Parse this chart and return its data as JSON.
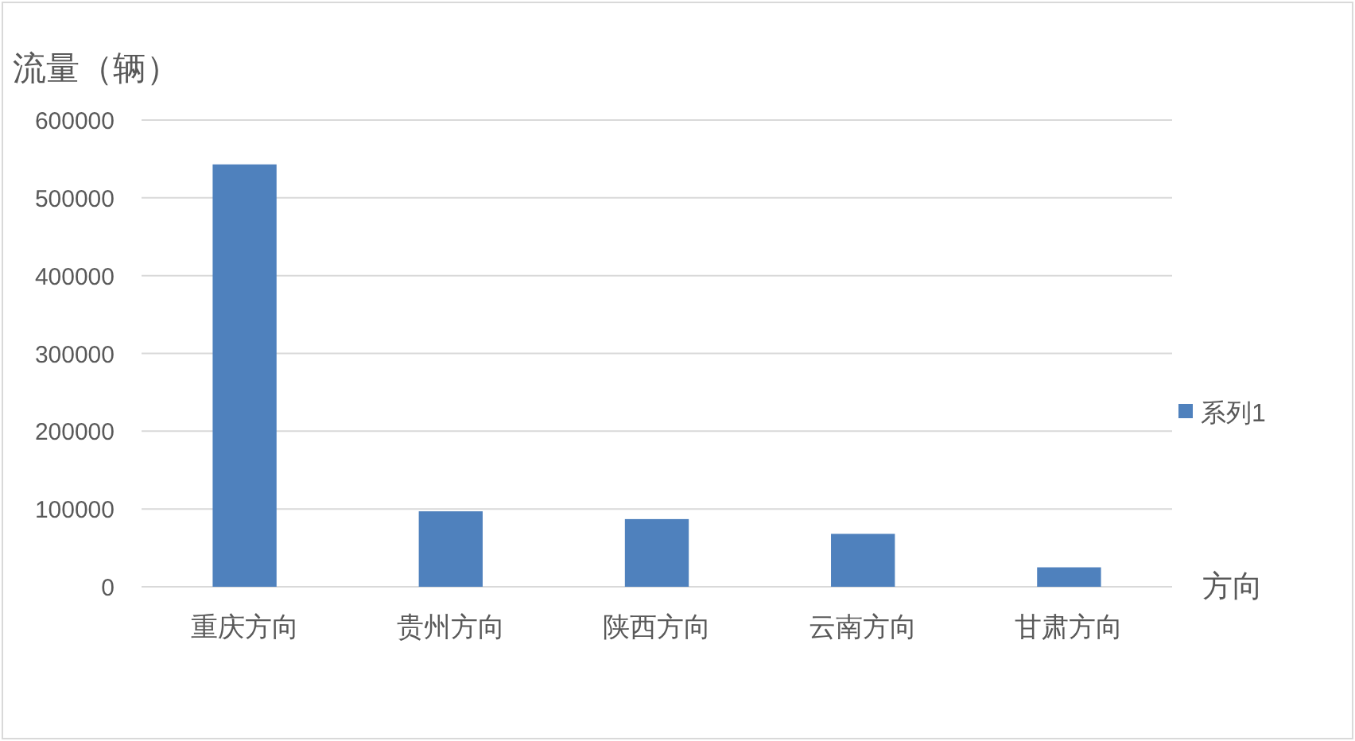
{
  "chart_data": {
    "type": "bar",
    "ylabel": "流量（辆）",
    "xlabel": "方向",
    "categories": [
      "重庆方向",
      "贵州方向",
      "陕西方向",
      "云南方向",
      "甘肃方向"
    ],
    "series": [
      {
        "name": "系列1",
        "color": "#4f81bd",
        "values": [
          543000,
          97000,
          87000,
          68000,
          25000
        ]
      }
    ],
    "ylim": [
      0,
      600000
    ],
    "yticks": [
      0,
      100000,
      200000,
      300000,
      400000,
      500000,
      600000
    ],
    "grid": "y",
    "legend": "right"
  }
}
